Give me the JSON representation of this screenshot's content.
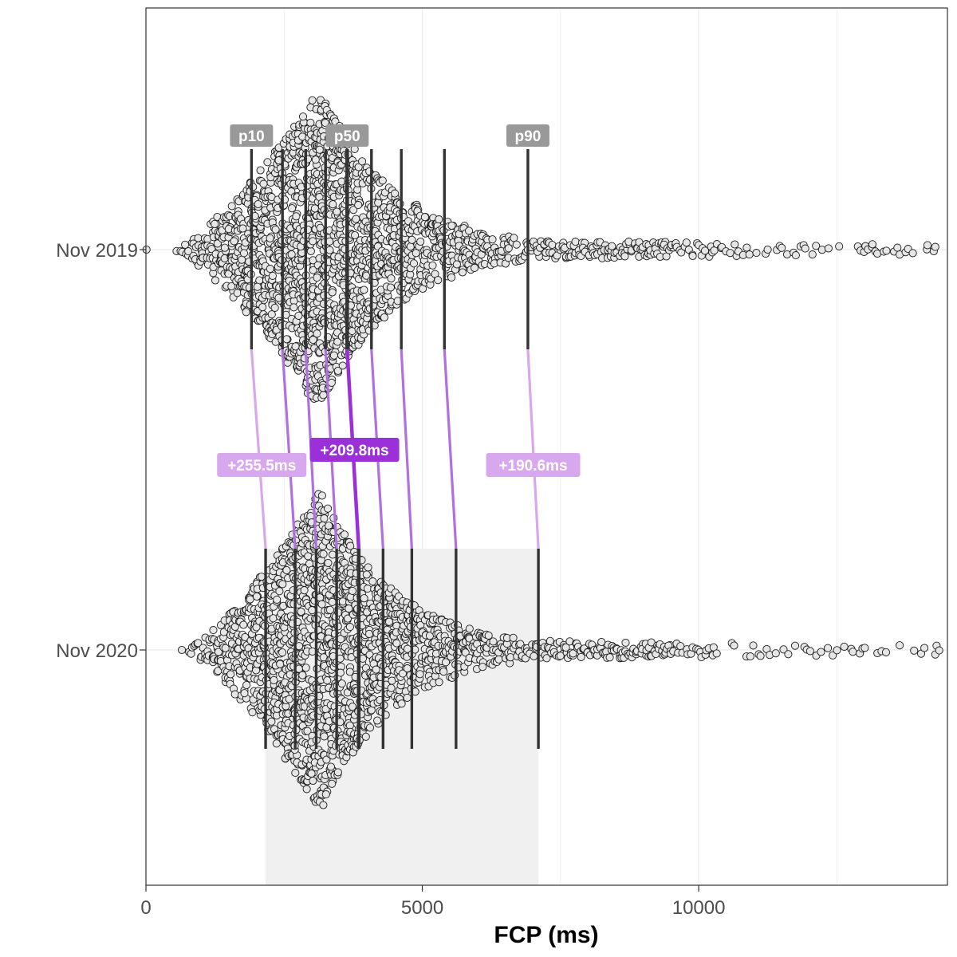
{
  "chart_data": {
    "type": "scatter",
    "subtype": "beeswarm with percentile lines",
    "xlabel": "FCP (ms)",
    "ylabel": "",
    "xlim": [
      0,
      14500
    ],
    "x_ticks": [
      0,
      5000,
      10000
    ],
    "x_tick_labels": [
      "0",
      "5000",
      "10000"
    ],
    "grid": true,
    "categories": [
      "Nov 2019",
      "Nov 2020"
    ],
    "percentile_marker_labels": [
      "p10",
      "p50",
      "p90"
    ],
    "series": [
      {
        "name": "Nov 2019",
        "percentiles": [
          {
            "p": 10,
            "value": 1910
          },
          {
            "p": 20,
            "value": 2470
          },
          {
            "p": 30,
            "value": 2890
          },
          {
            "p": 40,
            "value": 3250
          },
          {
            "p": 50,
            "value": 3640
          },
          {
            "p": 60,
            "value": 4080
          },
          {
            "p": 70,
            "value": 4620
          },
          {
            "p": 80,
            "value": 5400
          },
          {
            "p": 90,
            "value": 6910
          }
        ],
        "distribution": {
          "min": 0,
          "max": 14500,
          "center_ms": 3150
        }
      },
      {
        "name": "Nov 2020",
        "percentiles": [
          {
            "p": 10,
            "value": 2165
          },
          {
            "p": 20,
            "value": 2700
          },
          {
            "p": 30,
            "value": 3080
          },
          {
            "p": 40,
            "value": 3450
          },
          {
            "p": 50,
            "value": 3850
          },
          {
            "p": 60,
            "value": 4290
          },
          {
            "p": 70,
            "value": 4810
          },
          {
            "p": 80,
            "value": 5610
          },
          {
            "p": 90,
            "value": 7100
          }
        ],
        "distribution": {
          "min": 600,
          "max": 14500,
          "center_ms": 3150
        }
      }
    ],
    "deltas": [
      {
        "p": 10,
        "label": "+255.5ms"
      },
      {
        "p": 50,
        "label": "+209.8ms"
      },
      {
        "p": 90,
        "label": "+190.6ms"
      }
    ],
    "shaded_band": {
      "from": 2165,
      "to": 7100,
      "row": "Nov 2020"
    },
    "colors": {
      "point_fill": "#e6e6e6",
      "point_stroke": "#1a1a1a",
      "percentile_line": "#333333",
      "percentile_badge": "#999999",
      "delta_strong": "#9b30d9",
      "delta_light": "#d8a8ee",
      "band": "#f0f0f0",
      "grid": "#ebebeb"
    }
  }
}
